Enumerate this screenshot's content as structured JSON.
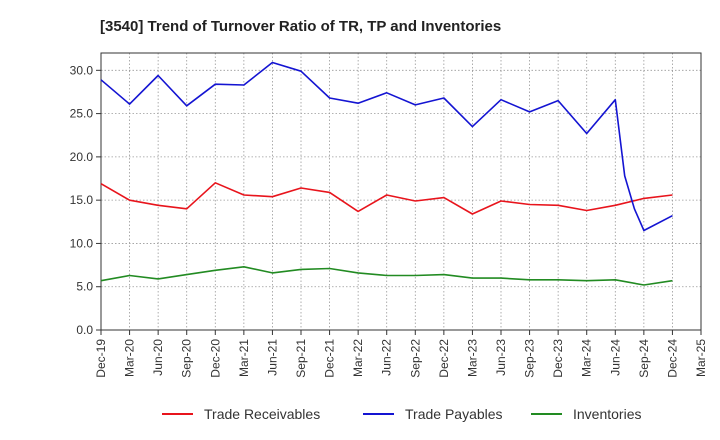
{
  "chart_data": {
    "type": "line",
    "title": "[3540]  Trend of Turnover Ratio of TR, TP and Inventories",
    "xlabel": "",
    "ylabel": "",
    "ylim": [
      0,
      32
    ],
    "yticks": [
      "0.0",
      "5.0",
      "10.0",
      "15.0",
      "20.0",
      "25.0",
      "30.0"
    ],
    "ytick_values": [
      0,
      5,
      10,
      15,
      20,
      25,
      30
    ],
    "grid": true,
    "legend_position": "bottom",
    "x": [
      "Dec-19",
      "Mar-20",
      "Jun-20",
      "Sep-20",
      "Dec-20",
      "Mar-21",
      "Jun-21",
      "Sep-21",
      "Dec-21",
      "Mar-22",
      "Jun-22",
      "Sep-22",
      "Dec-22",
      "Mar-23",
      "Jun-23",
      "Sep-23",
      "Dec-23",
      "Mar-24",
      "Jun-24",
      "Sep-24",
      "Dec-24",
      "Mar-25"
    ],
    "series": [
      {
        "name": "Trade Receivables",
        "color": "#e8141c",
        "points": [
          {
            "x": 0,
            "y": 16.9
          },
          {
            "x": 1,
            "y": 15.0
          },
          {
            "x": 2,
            "y": 14.4
          },
          {
            "x": 3,
            "y": 14.0
          },
          {
            "x": 4,
            "y": 17.0
          },
          {
            "x": 5,
            "y": 15.6
          },
          {
            "x": 6,
            "y": 15.4
          },
          {
            "x": 7,
            "y": 16.4
          },
          {
            "x": 8,
            "y": 15.9
          },
          {
            "x": 9,
            "y": 13.7
          },
          {
            "x": 10,
            "y": 15.6
          },
          {
            "x": 11,
            "y": 14.9
          },
          {
            "x": 12,
            "y": 15.3
          },
          {
            "x": 13,
            "y": 13.4
          },
          {
            "x": 14,
            "y": 14.9
          },
          {
            "x": 15,
            "y": 14.5
          },
          {
            "x": 16,
            "y": 14.4
          },
          {
            "x": 17,
            "y": 13.8
          },
          {
            "x": 18,
            "y": 14.4
          },
          {
            "x": 19,
            "y": 15.2
          },
          {
            "x": 20,
            "y": 15.6
          }
        ]
      },
      {
        "name": "Trade Payables",
        "color": "#1414d2",
        "points": [
          {
            "x": 0,
            "y": 28.9
          },
          {
            "x": 1,
            "y": 26.1
          },
          {
            "x": 2,
            "y": 29.4
          },
          {
            "x": 3,
            "y": 25.9
          },
          {
            "x": 4,
            "y": 28.4
          },
          {
            "x": 5,
            "y": 28.3
          },
          {
            "x": 6,
            "y": 30.9
          },
          {
            "x": 7,
            "y": 29.9
          },
          {
            "x": 8,
            "y": 26.8
          },
          {
            "x": 9,
            "y": 26.2
          },
          {
            "x": 10,
            "y": 27.4
          },
          {
            "x": 11,
            "y": 26.0
          },
          {
            "x": 12,
            "y": 26.8
          },
          {
            "x": 13,
            "y": 23.5
          },
          {
            "x": 14,
            "y": 26.6
          },
          {
            "x": 15,
            "y": 25.2
          },
          {
            "x": 16,
            "y": 26.5
          },
          {
            "x": 17,
            "y": 22.7
          },
          {
            "x": 18,
            "y": 26.6
          },
          {
            "x": 18.33,
            "y": 17.8
          },
          {
            "x": 18.67,
            "y": 14.0
          },
          {
            "x": 19,
            "y": 11.5
          },
          {
            "x": 20,
            "y": 13.2
          }
        ]
      },
      {
        "name": "Inventories",
        "color": "#228b22",
        "points": [
          {
            "x": 0,
            "y": 5.7
          },
          {
            "x": 1,
            "y": 6.3
          },
          {
            "x": 2,
            "y": 5.9
          },
          {
            "x": 3,
            "y": 6.4
          },
          {
            "x": 4,
            "y": 6.9
          },
          {
            "x": 5,
            "y": 7.3
          },
          {
            "x": 6,
            "y": 6.6
          },
          {
            "x": 7,
            "y": 7.0
          },
          {
            "x": 8,
            "y": 7.1
          },
          {
            "x": 9,
            "y": 6.6
          },
          {
            "x": 10,
            "y": 6.3
          },
          {
            "x": 11,
            "y": 6.3
          },
          {
            "x": 12,
            "y": 6.4
          },
          {
            "x": 13,
            "y": 6.0
          },
          {
            "x": 14,
            "y": 6.0
          },
          {
            "x": 15,
            "y": 5.8
          },
          {
            "x": 16,
            "y": 5.8
          },
          {
            "x": 17,
            "y": 5.7
          },
          {
            "x": 18,
            "y": 5.8
          },
          {
            "x": 19,
            "y": 5.2
          },
          {
            "x": 20,
            "y": 5.7
          }
        ]
      }
    ]
  }
}
